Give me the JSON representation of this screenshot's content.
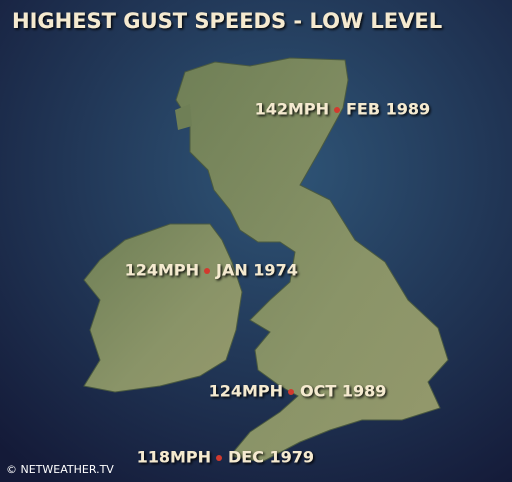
{
  "title": "HIGHEST GUST SPEEDS - LOW LEVEL",
  "markers": [
    {
      "speed": "142MPH",
      "date": "FEB 1989"
    },
    {
      "speed": "124MPH",
      "date": "JAN 1974"
    },
    {
      "speed": "124MPH",
      "date": "OCT 1989"
    },
    {
      "speed": "118MPH",
      "date": "DEC 1979"
    }
  ],
  "copyright": "© NETWEATHER.TV"
}
